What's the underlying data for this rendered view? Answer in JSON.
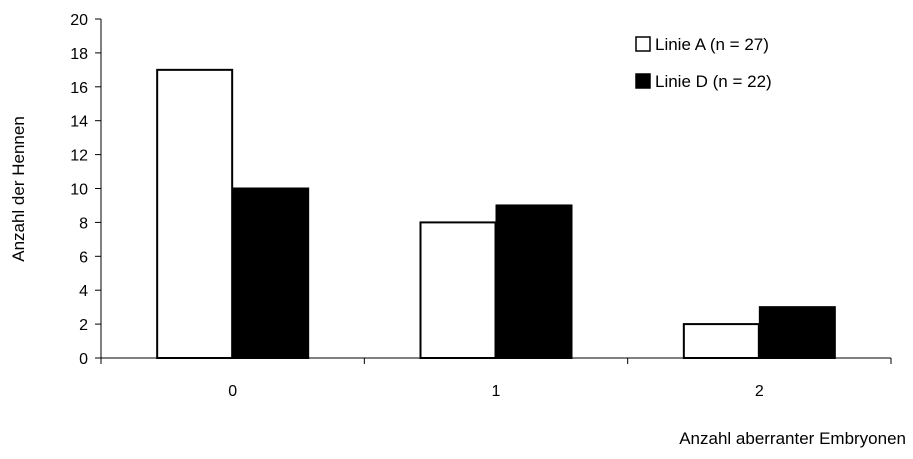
{
  "chart_data": {
    "type": "bar",
    "title": "",
    "xlabel": "Anzahl aberranter Embryonen",
    "ylabel": "Anzahl der Hennen",
    "categories": [
      "0",
      "1",
      "2"
    ],
    "ylim": [
      0,
      20
    ],
    "yticks": [
      0,
      2,
      4,
      6,
      8,
      10,
      12,
      14,
      16,
      18,
      20
    ],
    "grid": false,
    "legend_position": "top-right",
    "series": [
      {
        "name": "Linie A (n = 27)",
        "values": [
          17,
          8,
          2
        ],
        "fill": "#ffffff",
        "stroke": "#000000"
      },
      {
        "name": "Linie D (n = 22)",
        "values": [
          10,
          9,
          3
        ],
        "fill": "#000000",
        "stroke": "#000000"
      }
    ]
  }
}
